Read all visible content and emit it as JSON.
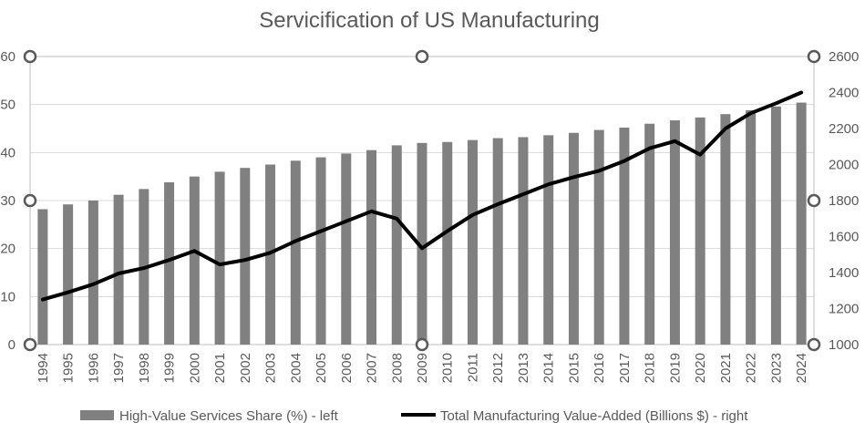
{
  "chart_data": {
    "type": "bar+line",
    "title": "Servicification of US Manufacturing",
    "categories": [
      "1994",
      "1995",
      "1996",
      "1997",
      "1998",
      "1999",
      "2000",
      "2001",
      "2002",
      "2003",
      "2004",
      "2005",
      "2006",
      "2007",
      "2008",
      "2009",
      "2010",
      "2011",
      "2012",
      "2013",
      "2014",
      "2015",
      "2016",
      "2017",
      "2018",
      "2019",
      "2020",
      "2021",
      "2022",
      "2023",
      "2024"
    ],
    "series": [
      {
        "name": "High-Value Services Share (%) - left",
        "type": "bar",
        "axis": "left",
        "color": "#808080",
        "values": [
          28.2,
          29.2,
          30.0,
          31.2,
          32.4,
          33.8,
          35.0,
          36.0,
          36.8,
          37.5,
          38.3,
          39.0,
          39.8,
          40.5,
          41.5,
          42.0,
          42.2,
          42.6,
          43.0,
          43.2,
          43.6,
          44.1,
          44.7,
          45.2,
          46.0,
          46.7,
          47.3,
          48.0,
          48.8,
          49.6,
          50.4
        ]
      },
      {
        "name": "Total Manufacturing Value-Added (Billions $) - right",
        "type": "line",
        "axis": "right",
        "color": "#000000",
        "values": [
          1250,
          1290,
          1335,
          1395,
          1425,
          1470,
          1520,
          1445,
          1470,
          1510,
          1575,
          1630,
          1685,
          1740,
          1700,
          1535,
          1630,
          1720,
          1780,
          1835,
          1890,
          1930,
          1965,
          2020,
          2090,
          2130,
          2055,
          2200,
          2285,
          2340,
          2400
        ]
      }
    ],
    "y_left": {
      "min": 0,
      "max": 60,
      "ticks": [
        "0",
        "10",
        "20",
        "30",
        "40",
        "50",
        "60"
      ]
    },
    "y_right": {
      "min": 1000,
      "max": 2600,
      "ticks": [
        "1000",
        "1200",
        "1400",
        "1600",
        "1800",
        "2000",
        "2200",
        "2400",
        "2600"
      ]
    },
    "grid": true,
    "legend": "bottom"
  }
}
